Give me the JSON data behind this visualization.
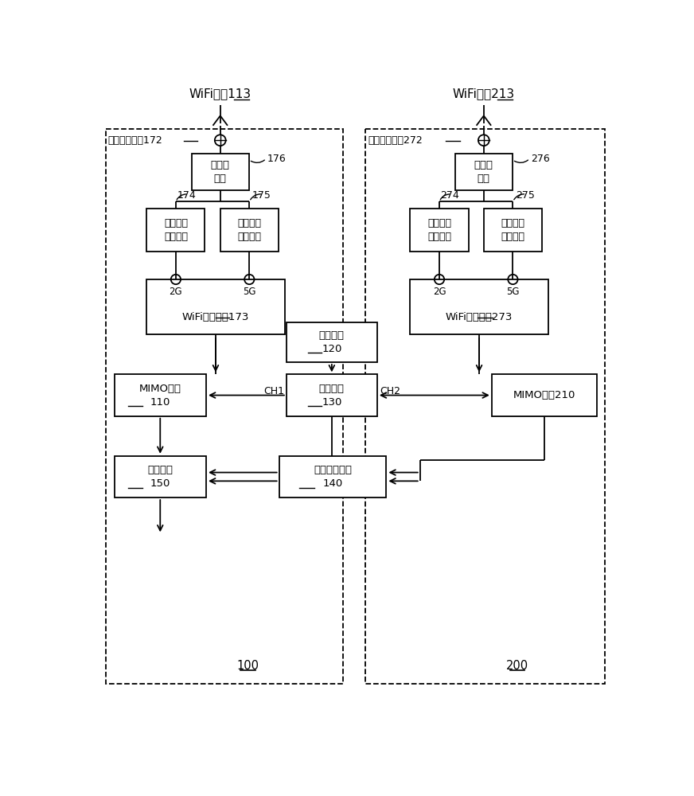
{
  "background": "#ffffff",
  "fig_width": 8.72,
  "fig_height": 10.0,
  "dpi": 100,
  "left_antenna_label": "WiFi天线113",
  "right_antenna_label": "WiFi天线213",
  "left_port_label": "天线连接端口172",
  "right_port_label": "天线连接端口272",
  "left_duplexer_text": "第一双\n工器",
  "right_duplexer_text": "第一双\n工器",
  "left_rf1_text": "第一射频\n前端模块",
  "left_rf2_text": "第二射频\n前端模块",
  "right_rf1_text": "第一射频\n前端模块",
  "right_rf2_text": "第二射频\n前端模块",
  "left_wifi_text": "WiFi射频模块173",
  "right_wifi_text": "WiFi射频模块273",
  "query_text": "查询模块\n120",
  "sched_text": "调度模块\n130",
  "mimo_left_text": "MIMO模块\n110",
  "mimo_right_text": "MIMO模块210",
  "synth_text": "合成模块\n150",
  "data_text": "数据传输模块\n140",
  "label_174": "174",
  "label_175": "175",
  "label_176": "176",
  "label_274": "274",
  "label_275": "275",
  "label_276": "276",
  "label_ch1": "CH1",
  "label_ch2": "CH2",
  "label_100": "100",
  "label_200": "200"
}
